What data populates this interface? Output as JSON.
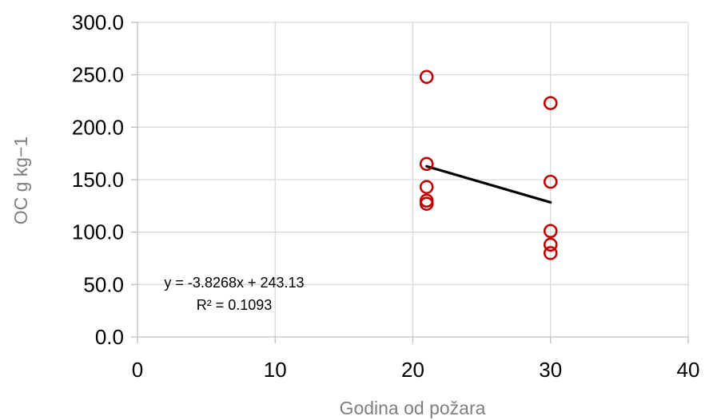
{
  "chart_data": {
    "type": "scatter",
    "title": "",
    "xlabel": "Godina od požara",
    "ylabel": "OC g kg−1",
    "xlim": [
      0,
      40
    ],
    "ylim": [
      0,
      300
    ],
    "x_ticks": [
      "0",
      "10",
      "20",
      "30",
      "40"
    ],
    "y_ticks": [
      "0.0",
      "50.0",
      "100.0",
      "150.0",
      "200.0",
      "250.0",
      "300.0"
    ],
    "grid": true,
    "series": [
      {
        "marker": "open-circle",
        "color": "#c00000",
        "points": [
          {
            "x": 21,
            "y": 248
          },
          {
            "x": 21,
            "y": 165
          },
          {
            "x": 21,
            "y": 143
          },
          {
            "x": 21,
            "y": 130
          },
          {
            "x": 21,
            "y": 127
          },
          {
            "x": 30,
            "y": 223
          },
          {
            "x": 30,
            "y": 148
          },
          {
            "x": 30,
            "y": 101
          },
          {
            "x": 30,
            "y": 88
          },
          {
            "x": 30,
            "y": 80
          }
        ]
      }
    ],
    "trendline": {
      "type": "linear",
      "slope": -3.8268,
      "intercept": 243.13,
      "x_range": [
        21,
        30
      ],
      "color": "#000000",
      "equation_label": "y = -3.8268x + 243.13",
      "r2_label": "R² = 0.1093"
    }
  },
  "colors": {
    "grid": "#d9d9d9",
    "axis": "#bfbfbf",
    "marker": "#c00000"
  }
}
